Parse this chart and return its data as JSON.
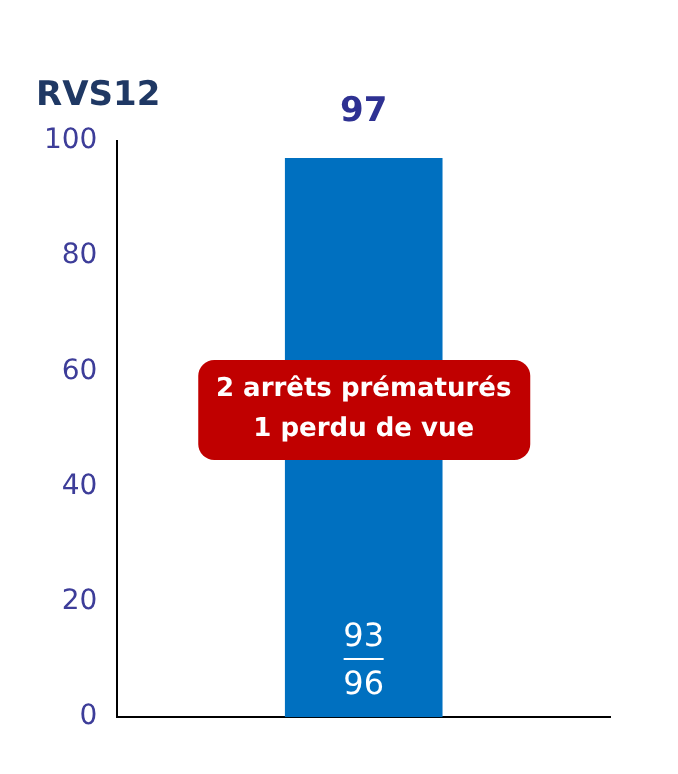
{
  "chart_data": {
    "type": "bar",
    "title": "RVS12",
    "categories": [
      null
    ],
    "values": [
      97
    ],
    "color": "#0070c0",
    "data_labels": true,
    "ylim": [
      0,
      100
    ],
    "yticks": [
      0,
      20,
      40,
      60,
      80,
      100
    ],
    "grid": false,
    "legend": false,
    "annotations": [
      "2 arrêts prématurés\n1 perdu de vue",
      "93\n96"
    ]
  }
}
